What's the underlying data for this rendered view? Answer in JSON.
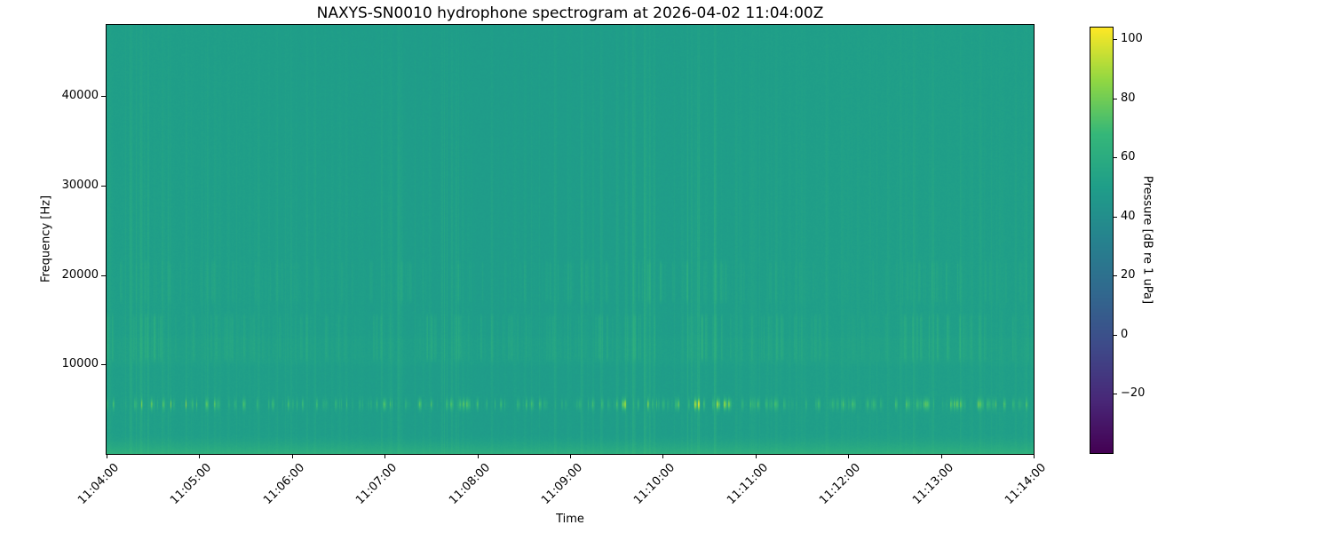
{
  "chart_data": {
    "type": "heatmap",
    "subtype": "spectrogram",
    "title": "NAXYS-SN0010 hydrophone spectrogram at 2026-04-02 11:04:00Z",
    "xlabel": "Time",
    "ylabel": "Frequency [Hz]",
    "x_ticks": [
      "11:04:00",
      "11:05:00",
      "11:06:00",
      "11:07:00",
      "11:08:00",
      "11:09:00",
      "11:10:00",
      "11:11:00",
      "11:12:00",
      "11:13:00",
      "11:14:00"
    ],
    "y_ticks": [
      10000,
      20000,
      30000,
      40000
    ],
    "freq_range_hz": [
      0,
      48000
    ],
    "time_range": [
      "11:04:00",
      "11:14:00"
    ],
    "grid": false,
    "colormap": "viridis",
    "colorbar": {
      "label": "Pressure [dB re 1 uPa]",
      "ticks": [
        -20,
        0,
        20,
        40,
        60,
        80,
        100
      ],
      "vmin": -40,
      "vmax": 104,
      "position": "right"
    },
    "background_level_db": 50,
    "features": [
      {
        "name": "low-frequency-surface-band",
        "f_low_hz": 0,
        "f_high_hz": 2400,
        "peak_boost_db": 13,
        "description": "bright green band hugging 0 Hz across all times"
      },
      {
        "name": "impulsive-tonal-band",
        "f_center_hz": 5600,
        "f_sigma_hz": 430,
        "max_boost_db": 44,
        "description": "dense train of bright yellow-green impulsive clicks near 5.5 kHz"
      },
      {
        "name": "mid-band-streaks",
        "f_low_hz": 10900,
        "f_high_hz": 15200,
        "max_boost_db": 12,
        "description": "dense vertical streak texture between 11 and 15 kHz"
      },
      {
        "name": "upper-band-streaks",
        "f_low_hz": 17400,
        "f_high_hz": 21200,
        "max_boost_db": 9,
        "description": "vertical streak band around 18-21 kHz"
      },
      {
        "name": "broadband-click-streaks",
        "f_low_hz": 2000,
        "f_high_hz": 48000,
        "max_boost_db": 9,
        "description": "faint full-height vertical streaks from broadband transients"
      },
      {
        "name": "elevated-horizontal-band",
        "f_low_hz": 10300,
        "f_high_hz": 12800,
        "boost_db": 1.2,
        "description": "slightly lighter horizontal strip just above 10 kHz"
      }
    ],
    "colors": {
      "background_teal": "#1fa189",
      "streak_green": "#3cb476",
      "hot_blob_yellow_green": "#c8de4a",
      "colorbar_top": "#fde725",
      "colorbar_bottom": "#440154",
      "figure_background": "#ffffff",
      "text": "#000000"
    }
  }
}
